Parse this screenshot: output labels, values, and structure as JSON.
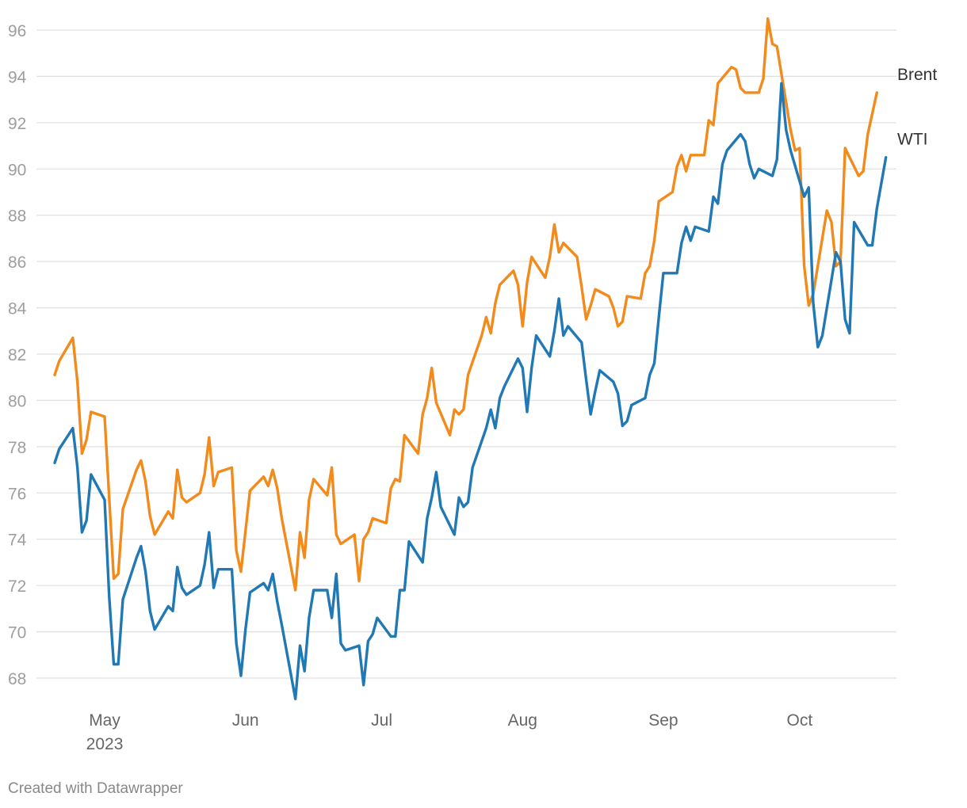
{
  "chart_data": {
    "type": "line",
    "title": "",
    "xlabel": "",
    "ylabel": "",
    "ylim": [
      67,
      97
    ],
    "y_ticks": [
      68,
      70,
      72,
      74,
      76,
      78,
      80,
      82,
      84,
      86,
      88,
      90,
      92,
      94,
      96
    ],
    "x_range_days": [
      0,
      182
    ],
    "x_ticks": [
      {
        "label": "May",
        "sublabel": "2023",
        "day": 11
      },
      {
        "label": "Jun",
        "sublabel": "",
        "day": 42
      },
      {
        "label": "Jul",
        "sublabel": "",
        "day": 72
      },
      {
        "label": "Aug",
        "sublabel": "",
        "day": 103
      },
      {
        "label": "Sep",
        "sublabel": "",
        "day": 134
      },
      {
        "label": "Oct",
        "sublabel": "",
        "day": 164
      }
    ],
    "grid": true,
    "series": [
      {
        "name": "Brent",
        "color": "#f28a1c",
        "points": [
          [
            0,
            81.1
          ],
          [
            1,
            81.7
          ],
          [
            4,
            82.7
          ],
          [
            5,
            80.8
          ],
          [
            6,
            77.7
          ],
          [
            7,
            78.3
          ],
          [
            8,
            79.5
          ],
          [
            11,
            79.3
          ],
          [
            13,
            72.3
          ],
          [
            14,
            72.5
          ],
          [
            15,
            75.3
          ],
          [
            18,
            77.0
          ],
          [
            19,
            77.4
          ],
          [
            20,
            76.5
          ],
          [
            21,
            75.0
          ],
          [
            22,
            74.2
          ],
          [
            25,
            75.2
          ],
          [
            26,
            74.9
          ],
          [
            27,
            77.0
          ],
          [
            28,
            75.8
          ],
          [
            29,
            75.6
          ],
          [
            32,
            76.0
          ],
          [
            33,
            76.8
          ],
          [
            34,
            78.4
          ],
          [
            35,
            76.3
          ],
          [
            36,
            76.9
          ],
          [
            39,
            77.1
          ],
          [
            40,
            73.5
          ],
          [
            41,
            72.6
          ],
          [
            43,
            76.1
          ],
          [
            46,
            76.7
          ],
          [
            47,
            76.3
          ],
          [
            48,
            77.0
          ],
          [
            49,
            76.2
          ],
          [
            50,
            74.9
          ],
          [
            53,
            71.8
          ],
          [
            54,
            74.3
          ],
          [
            55,
            73.2
          ],
          [
            56,
            75.7
          ],
          [
            57,
            76.6
          ],
          [
            60,
            75.9
          ],
          [
            61,
            77.1
          ],
          [
            62,
            74.2
          ],
          [
            63,
            73.8
          ],
          [
            66,
            74.2
          ],
          [
            67,
            72.2
          ],
          [
            68,
            74.0
          ],
          [
            69,
            74.3
          ],
          [
            70,
            74.9
          ],
          [
            73,
            74.7
          ],
          [
            74,
            76.2
          ],
          [
            75,
            76.6
          ],
          [
            76,
            76.5
          ],
          [
            77,
            78.5
          ],
          [
            80,
            77.7
          ],
          [
            81,
            79.4
          ],
          [
            82,
            80.1
          ],
          [
            83,
            81.4
          ],
          [
            84,
            79.9
          ],
          [
            87,
            78.5
          ],
          [
            88,
            79.6
          ],
          [
            89,
            79.4
          ],
          [
            90,
            79.6
          ],
          [
            91,
            81.1
          ],
          [
            94,
            82.8
          ],
          [
            95,
            83.6
          ],
          [
            96,
            82.9
          ],
          [
            97,
            84.2
          ],
          [
            98,
            85.0
          ],
          [
            101,
            85.6
          ],
          [
            102,
            85.0
          ],
          [
            103,
            83.2
          ],
          [
            104,
            85.1
          ],
          [
            105,
            86.2
          ],
          [
            108,
            85.3
          ],
          [
            109,
            86.2
          ],
          [
            110,
            87.6
          ],
          [
            111,
            86.4
          ],
          [
            112,
            86.8
          ],
          [
            115,
            86.2
          ],
          [
            116,
            84.9
          ],
          [
            117,
            83.5
          ],
          [
            118,
            84.1
          ],
          [
            119,
            84.8
          ],
          [
            122,
            84.5
          ],
          [
            123,
            84.0
          ],
          [
            124,
            83.2
          ],
          [
            125,
            83.4
          ],
          [
            126,
            84.5
          ],
          [
            129,
            84.4
          ],
          [
            130,
            85.5
          ],
          [
            131,
            85.8
          ],
          [
            132,
            86.9
          ],
          [
            133,
            88.6
          ],
          [
            136,
            89.0
          ],
          [
            137,
            90.1
          ],
          [
            138,
            90.6
          ],
          [
            139,
            89.9
          ],
          [
            140,
            90.6
          ],
          [
            143,
            90.6
          ],
          [
            144,
            92.1
          ],
          [
            145,
            91.9
          ],
          [
            146,
            93.7
          ],
          [
            149,
            94.4
          ],
          [
            150,
            94.3
          ],
          [
            151,
            93.5
          ],
          [
            152,
            93.3
          ],
          [
            155,
            93.3
          ],
          [
            156,
            93.9
          ],
          [
            157,
            96.5
          ],
          [
            158,
            95.4
          ],
          [
            159,
            95.3
          ],
          [
            162,
            91.7
          ],
          [
            163,
            90.8
          ],
          [
            164,
            90.9
          ],
          [
            165,
            85.8
          ],
          [
            166,
            84.1
          ],
          [
            167,
            84.6
          ],
          [
            170,
            88.2
          ],
          [
            171,
            87.7
          ],
          [
            172,
            85.8
          ],
          [
            173,
            86.0
          ],
          [
            174,
            90.9
          ],
          [
            177,
            89.7
          ],
          [
            178,
            89.9
          ],
          [
            179,
            91.5
          ],
          [
            181,
            93.3
          ]
        ]
      },
      {
        "name": "WTI",
        "color": "#2078b4",
        "points": [
          [
            0,
            77.3
          ],
          [
            1,
            77.9
          ],
          [
            4,
            78.8
          ],
          [
            5,
            77.1
          ],
          [
            6,
            74.3
          ],
          [
            7,
            74.8
          ],
          [
            8,
            76.8
          ],
          [
            11,
            75.7
          ],
          [
            12,
            71.5
          ],
          [
            13,
            68.6
          ],
          [
            14,
            68.6
          ],
          [
            15,
            71.4
          ],
          [
            18,
            73.2
          ],
          [
            19,
            73.7
          ],
          [
            20,
            72.6
          ],
          [
            21,
            70.9
          ],
          [
            22,
            70.1
          ],
          [
            25,
            71.1
          ],
          [
            26,
            70.9
          ],
          [
            27,
            72.8
          ],
          [
            28,
            71.9
          ],
          [
            29,
            71.6
          ],
          [
            32,
            72.0
          ],
          [
            33,
            72.9
          ],
          [
            34,
            74.3
          ],
          [
            35,
            71.9
          ],
          [
            36,
            72.7
          ],
          [
            39,
            72.7
          ],
          [
            40,
            69.5
          ],
          [
            41,
            68.1
          ],
          [
            42,
            70.1
          ],
          [
            43,
            71.7
          ],
          [
            46,
            72.1
          ],
          [
            47,
            71.8
          ],
          [
            48,
            72.5
          ],
          [
            49,
            71.3
          ],
          [
            50,
            70.3
          ],
          [
            53,
            67.1
          ],
          [
            54,
            69.4
          ],
          [
            55,
            68.3
          ],
          [
            56,
            70.6
          ],
          [
            57,
            71.8
          ],
          [
            60,
            71.8
          ],
          [
            61,
            70.6
          ],
          [
            62,
            72.5
          ],
          [
            63,
            69.5
          ],
          [
            64,
            69.2
          ],
          [
            67,
            69.4
          ],
          [
            68,
            67.7
          ],
          [
            69,
            69.6
          ],
          [
            70,
            69.9
          ],
          [
            71,
            70.6
          ],
          [
            74,
            69.8
          ],
          [
            75,
            69.8
          ],
          [
            76,
            71.8
          ],
          [
            77,
            71.8
          ],
          [
            78,
            73.9
          ],
          [
            81,
            73.0
          ],
          [
            82,
            74.9
          ],
          [
            83,
            75.8
          ],
          [
            84,
            76.9
          ],
          [
            85,
            75.4
          ],
          [
            88,
            74.2
          ],
          [
            89,
            75.8
          ],
          [
            90,
            75.4
          ],
          [
            91,
            75.6
          ],
          [
            92,
            77.1
          ],
          [
            95,
            78.8
          ],
          [
            96,
            79.6
          ],
          [
            97,
            78.8
          ],
          [
            98,
            80.1
          ],
          [
            99,
            80.6
          ],
          [
            102,
            81.8
          ],
          [
            103,
            81.4
          ],
          [
            104,
            79.5
          ],
          [
            105,
            81.4
          ],
          [
            106,
            82.8
          ],
          [
            109,
            81.9
          ],
          [
            110,
            83.0
          ],
          [
            111,
            84.4
          ],
          [
            112,
            82.8
          ],
          [
            113,
            83.2
          ],
          [
            116,
            82.5
          ],
          [
            117,
            80.9
          ],
          [
            118,
            79.4
          ],
          [
            119,
            80.4
          ],
          [
            120,
            81.3
          ],
          [
            123,
            80.8
          ],
          [
            124,
            80.3
          ],
          [
            125,
            78.9
          ],
          [
            126,
            79.1
          ],
          [
            127,
            79.8
          ],
          [
            130,
            80.1
          ],
          [
            131,
            81.1
          ],
          [
            132,
            81.6
          ],
          [
            133,
            83.6
          ],
          [
            134,
            85.5
          ],
          [
            137,
            85.5
          ],
          [
            138,
            86.8
          ],
          [
            139,
            87.5
          ],
          [
            140,
            86.9
          ],
          [
            141,
            87.5
          ],
          [
            144,
            87.3
          ],
          [
            145,
            88.8
          ],
          [
            146,
            88.5
          ],
          [
            147,
            90.2
          ],
          [
            148,
            90.8
          ],
          [
            151,
            91.5
          ],
          [
            152,
            91.2
          ],
          [
            153,
            90.2
          ],
          [
            154,
            89.6
          ],
          [
            155,
            90.0
          ],
          [
            158,
            89.7
          ],
          [
            159,
            90.4
          ],
          [
            160,
            93.7
          ],
          [
            161,
            91.7
          ],
          [
            162,
            90.8
          ],
          [
            165,
            88.8
          ],
          [
            166,
            89.2
          ],
          [
            167,
            84.2
          ],
          [
            168,
            82.3
          ],
          [
            169,
            82.8
          ],
          [
            172,
            86.4
          ],
          [
            173,
            86.0
          ],
          [
            174,
            83.5
          ],
          [
            175,
            82.9
          ],
          [
            176,
            87.7
          ],
          [
            179,
            86.7
          ],
          [
            180,
            86.7
          ],
          [
            181,
            88.3
          ],
          [
            183,
            90.5
          ]
        ]
      }
    ],
    "credit": "Created with Datawrapper"
  }
}
